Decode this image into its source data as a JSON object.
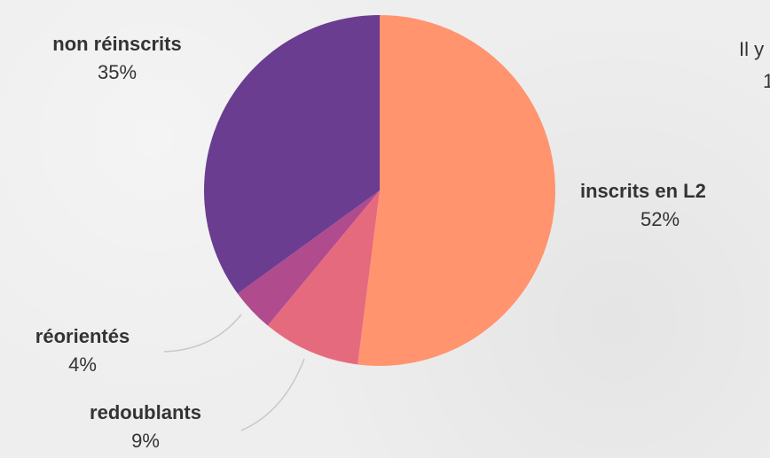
{
  "chart_data": {
    "type": "pie",
    "slices": [
      {
        "label": "inscrits en L2",
        "percent_label": "52%",
        "value": 52,
        "color": "#FF946F"
      },
      {
        "label": "redoublants",
        "percent_label": "9%",
        "value": 9,
        "color": "#E66A7E"
      },
      {
        "label": "réorientés",
        "percent_label": "4%",
        "value": 4,
        "color": "#B04B8E"
      },
      {
        "label": "non réinscrits",
        "percent_label": "35%",
        "value": 35,
        "color": "#6A3D91"
      }
    ],
    "start": "12 o'clock",
    "direction": "clockwise"
  },
  "partial_text": {
    "line1": "Il y",
    "line2": "1"
  }
}
